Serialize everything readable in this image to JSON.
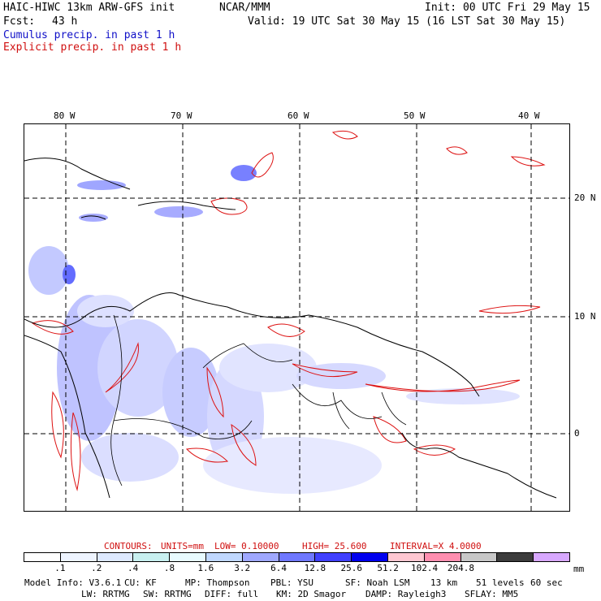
{
  "header": {
    "model": "HAIC-HIWC 13km ARW-GFS init",
    "org": "NCAR/MMM",
    "init": "Init: 00 UTC Fri 29 May 15",
    "fcst_label": "Fcst:",
    "fcst_value": "43 h",
    "valid": "Valid: 19 UTC Sat 30 May 15 (16 LST Sat 30 May 15)",
    "cumulus": "Cumulus precip. in past 1 h",
    "explicit": "Explicit precip. in past 1 h"
  },
  "map": {
    "lon_labels": [
      "80 W",
      "70 W",
      "60 W",
      "50 W",
      "40 W"
    ],
    "lat_labels": [
      "20 N",
      "10 N",
      "0"
    ]
  },
  "contours": {
    "title": "CONTOURS:",
    "units": "UNITS=mm",
    "low": "LOW= 0.10000",
    "high": "HIGH= 25.600",
    "interval": "INTERVAL=X 4.0000"
  },
  "colorbar": {
    "colors": [
      "#ffffff",
      "#eef4ff",
      "#dde9ff",
      "#c8f0f0",
      "#e8fbff",
      "#c0d8ff",
      "#9fa8ff",
      "#6f78ff",
      "#4040ff",
      "#0000ee",
      "#ffc8d2",
      "#ff8fb0",
      "#c8c8c8",
      "#3c3c3c",
      "#d8a8ff"
    ],
    "labels": [
      ".1",
      ".2",
      ".4",
      ".8",
      "1.6",
      "3.2",
      "6.4",
      "12.8",
      "25.6",
      "51.2",
      "102.4",
      "204.8"
    ],
    "unit": "mm"
  },
  "model_info": {
    "line1": {
      "version": "Model Info: V3.6.1",
      "cu": "CU: KF",
      "mp": "MP: Thompson",
      "pbl": "PBL: YSU",
      "sf": "SF: Noah LSM",
      "res": "13 km",
      "levels": "51 levels",
      "dt": "60 sec"
    },
    "line2": {
      "lw": "LW: RRTMG",
      "sw": "SW: RRTMG",
      "diff": "DIFF: full",
      "km": "KM: 2D Smagor",
      "damp": "DAMP: Rayleigh3",
      "sflay": "SFLAY: MM5"
    }
  }
}
